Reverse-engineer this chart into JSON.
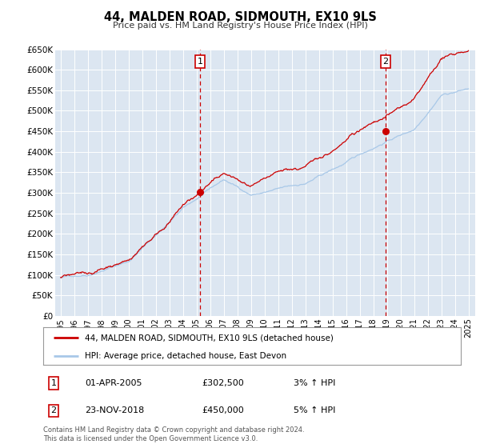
{
  "title": "44, MALDEN ROAD, SIDMOUTH, EX10 9LS",
  "subtitle": "Price paid vs. HM Land Registry's House Price Index (HPI)",
  "background_color": "#ffffff",
  "plot_bg_color": "#dce6f1",
  "grid_color": "#ffffff",
  "ylim": [
    0,
    650000
  ],
  "yticks": [
    0,
    50000,
    100000,
    150000,
    200000,
    250000,
    300000,
    350000,
    400000,
    450000,
    500000,
    550000,
    600000,
    650000
  ],
  "ytick_labels": [
    "£0",
    "£50K",
    "£100K",
    "£150K",
    "£200K",
    "£250K",
    "£300K",
    "£350K",
    "£400K",
    "£450K",
    "£500K",
    "£550K",
    "£600K",
    "£650K"
  ],
  "xlim_start": 1994.6,
  "xlim_end": 2025.5,
  "xticks": [
    1995,
    1996,
    1997,
    1998,
    1999,
    2000,
    2001,
    2002,
    2003,
    2004,
    2005,
    2006,
    2007,
    2008,
    2009,
    2010,
    2011,
    2012,
    2013,
    2014,
    2015,
    2016,
    2017,
    2018,
    2019,
    2020,
    2021,
    2022,
    2023,
    2024,
    2025
  ],
  "sale1_x": 2005.25,
  "sale1_y": 302500,
  "sale1_label": "1",
  "sale2_x": 2018.9,
  "sale2_y": 450000,
  "sale2_label": "2",
  "line1_color": "#cc0000",
  "line2_color": "#a8c8e8",
  "vline_color": "#cc0000",
  "marker_color": "#cc0000",
  "legend_line1": "44, MALDEN ROAD, SIDMOUTH, EX10 9LS (detached house)",
  "legend_line2": "HPI: Average price, detached house, East Devon",
  "table_rows": [
    {
      "num": "1",
      "date": "01-APR-2005",
      "price": "£302,500",
      "hpi": "3% ↑ HPI"
    },
    {
      "num": "2",
      "date": "23-NOV-2018",
      "price": "£450,000",
      "hpi": "5% ↑ HPI"
    }
  ],
  "footnote1": "Contains HM Land Registry data © Crown copyright and database right 2024.",
  "footnote2": "This data is licensed under the Open Government Licence v3.0."
}
